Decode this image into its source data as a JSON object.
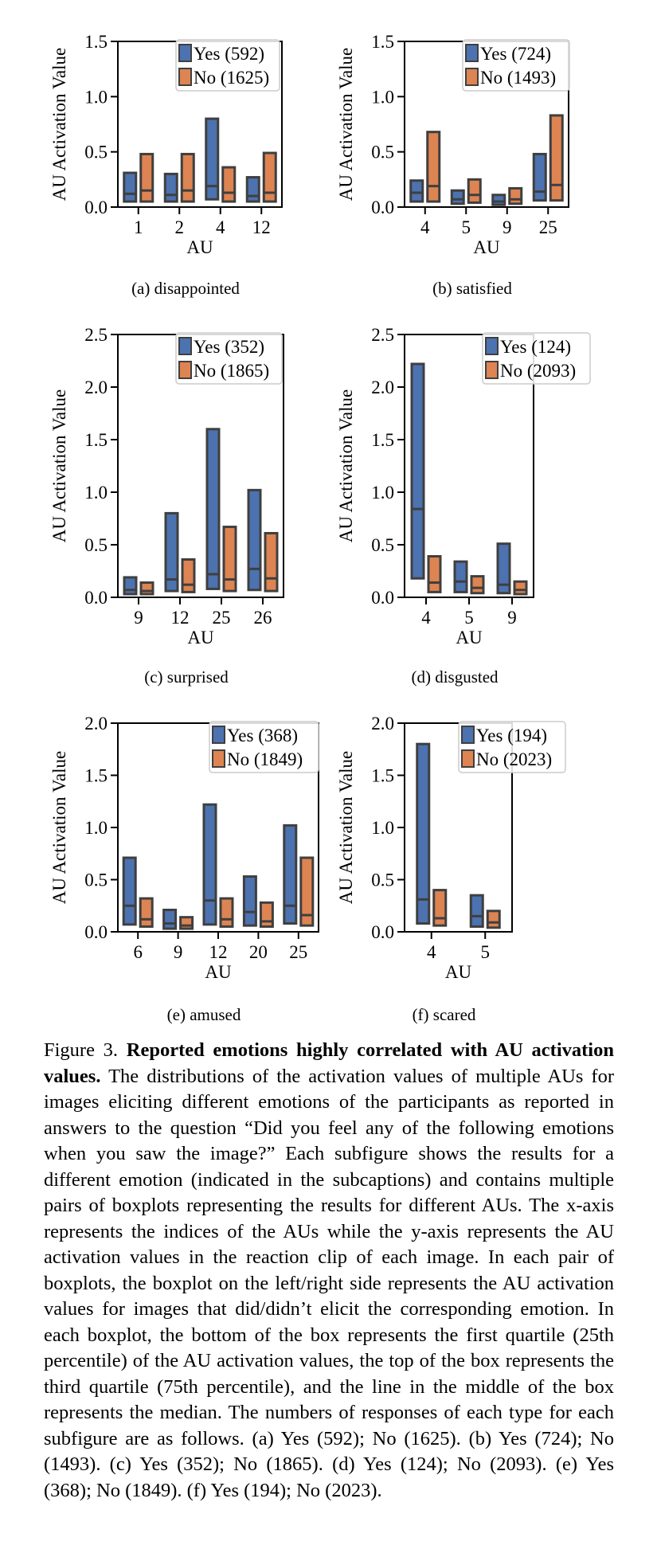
{
  "chart_data": [
    {
      "type": "box",
      "subcaption": "(a) disappointed",
      "xlabel": "AU",
      "ylabel": "AU Activation Value",
      "ylim": [
        0,
        1.5
      ],
      "yticks": [
        "0.0",
        "0.5",
        "1.0",
        "1.5"
      ],
      "categories": [
        "1",
        "2",
        "4",
        "12"
      ],
      "legend_position": "top-right",
      "series": [
        {
          "name": "Yes (592)",
          "color": "#4c72b0",
          "q1": [
            0.05,
            0.05,
            0.07,
            0.05
          ],
          "median": [
            0.12,
            0.11,
            0.19,
            0.1
          ],
          "q3": [
            0.31,
            0.3,
            0.8,
            0.27
          ]
        },
        {
          "name": "No (1625)",
          "color": "#dd8452",
          "q1": [
            0.05,
            0.05,
            0.05,
            0.05
          ],
          "median": [
            0.15,
            0.15,
            0.13,
            0.13
          ],
          "q3": [
            0.48,
            0.48,
            0.36,
            0.49
          ]
        }
      ]
    },
    {
      "type": "box",
      "subcaption": "(b) satisfied",
      "xlabel": "AU",
      "ylabel": "AU Activation Value",
      "ylim": [
        0,
        1.5
      ],
      "yticks": [
        "0.0",
        "0.5",
        "1.0",
        "1.5"
      ],
      "categories": [
        "4",
        "5",
        "9",
        "25"
      ],
      "legend_position": "top-right",
      "series": [
        {
          "name": "Yes (724)",
          "color": "#4c72b0",
          "q1": [
            0.05,
            0.03,
            0.02,
            0.06
          ],
          "median": [
            0.13,
            0.07,
            0.05,
            0.14
          ],
          "q3": [
            0.24,
            0.15,
            0.11,
            0.48
          ]
        },
        {
          "name": "No (1493)",
          "color": "#dd8452",
          "q1": [
            0.05,
            0.04,
            0.03,
            0.06
          ],
          "median": [
            0.19,
            0.11,
            0.07,
            0.2
          ],
          "q3": [
            0.68,
            0.25,
            0.17,
            0.83
          ]
        }
      ]
    },
    {
      "type": "box",
      "subcaption": "(c) surprised",
      "xlabel": "AU",
      "ylabel": "AU Activation Value",
      "ylim": [
        0,
        2.5
      ],
      "yticks": [
        "0.0",
        "0.5",
        "1.0",
        "1.5",
        "2.0",
        "2.5"
      ],
      "categories": [
        "9",
        "12",
        "25",
        "26"
      ],
      "legend_position": "top-right",
      "series": [
        {
          "name": "Yes (352)",
          "color": "#4c72b0",
          "q1": [
            0.03,
            0.06,
            0.08,
            0.07
          ],
          "median": [
            0.07,
            0.17,
            0.22,
            0.27
          ],
          "q3": [
            0.19,
            0.8,
            1.6,
            1.02
          ]
        },
        {
          "name": "No (1865)",
          "color": "#dd8452",
          "q1": [
            0.03,
            0.05,
            0.06,
            0.06
          ],
          "median": [
            0.06,
            0.12,
            0.17,
            0.18
          ],
          "q3": [
            0.14,
            0.36,
            0.67,
            0.61
          ]
        }
      ]
    },
    {
      "type": "box",
      "subcaption": "(d) disgusted",
      "xlabel": "AU",
      "ylabel": "AU Activation Value",
      "ylim": [
        0,
        2.5
      ],
      "yticks": [
        "0.0",
        "0.5",
        "1.0",
        "1.5",
        "2.0",
        "2.5"
      ],
      "categories": [
        "4",
        "5",
        "9"
      ],
      "legend_position": "top-right",
      "series": [
        {
          "name": "Yes (124)",
          "color": "#4c72b0",
          "q1": [
            0.18,
            0.05,
            0.04
          ],
          "median": [
            0.84,
            0.15,
            0.12
          ],
          "q3": [
            2.22,
            0.34,
            0.51
          ]
        },
        {
          "name": "No (2093)",
          "color": "#dd8452",
          "q1": [
            0.05,
            0.04,
            0.03
          ],
          "median": [
            0.14,
            0.09,
            0.07
          ],
          "q3": [
            0.39,
            0.2,
            0.15
          ]
        }
      ]
    },
    {
      "type": "box",
      "subcaption": "(e) amused",
      "xlabel": "AU",
      "ylabel": "AU Activation Value",
      "ylim": [
        0,
        2.0
      ],
      "yticks": [
        "0.0",
        "0.5",
        "1.0",
        "1.5",
        "2.0"
      ],
      "categories": [
        "6",
        "9",
        "12",
        "20",
        "25"
      ],
      "legend_position": "top-right",
      "series": [
        {
          "name": "Yes (368)",
          "color": "#4c72b0",
          "q1": [
            0.07,
            0.03,
            0.07,
            0.06,
            0.08
          ],
          "median": [
            0.25,
            0.08,
            0.3,
            0.19,
            0.25
          ],
          "q3": [
            0.71,
            0.21,
            1.22,
            0.53,
            1.02
          ]
        },
        {
          "name": "No (1849)",
          "color": "#dd8452",
          "q1": [
            0.05,
            0.03,
            0.05,
            0.05,
            0.06
          ],
          "median": [
            0.12,
            0.06,
            0.12,
            0.1,
            0.16
          ],
          "q3": [
            0.32,
            0.14,
            0.32,
            0.28,
            0.71
          ]
        }
      ]
    },
    {
      "type": "box",
      "subcaption": "(f) scared",
      "xlabel": "AU",
      "ylabel": "AU Activation Value",
      "ylim": [
        0,
        2.0
      ],
      "yticks": [
        "0.0",
        "0.5",
        "1.0",
        "1.5",
        "2.0"
      ],
      "categories": [
        "4",
        "5"
      ],
      "legend_position": "top-right",
      "series": [
        {
          "name": "Yes (194)",
          "color": "#4c72b0",
          "q1": [
            0.08,
            0.05
          ],
          "median": [
            0.31,
            0.15
          ],
          "q3": [
            1.8,
            0.35
          ]
        },
        {
          "name": "No (2023)",
          "color": "#dd8452",
          "q1": [
            0.06,
            0.04
          ],
          "median": [
            0.13,
            0.09
          ],
          "q3": [
            0.4,
            0.2
          ]
        }
      ]
    }
  ],
  "caption": {
    "label": "Figure 3.",
    "title": "Reported emotions highly correlated with AU activation values.",
    "body": "The distributions of the activation values of multiple AUs for images eliciting different emotions of the participants as reported in answers to the question “Did you feel any of the following emotions when you saw the image?” Each subfigure shows the results for a different emotion (indicated in the subcaptions) and contains multiple pairs of boxplots representing the results for different AUs. The x-axis represents the indices of the AUs while the y-axis represents the AU activation values in the reaction clip of each image. In each pair of boxplots, the boxplot on the left/right side represents the AU activation values for images that did/didn’t elicit the corresponding emotion. In each boxplot, the bottom of the box represents the first quartile (25th percentile) of the AU activation values, the top of the box represents the third quartile (75th percentile), and the line in the middle of the box represents the median. The numbers of responses of each type for each subfigure are as follows. (a) Yes (592); No (1625). (b) Yes (724); No (1493). (c) Yes (352); No (1865). (d) Yes (124); No (2093). (e) Yes (368); No (1849). (f) Yes (194); No (2023)."
  }
}
